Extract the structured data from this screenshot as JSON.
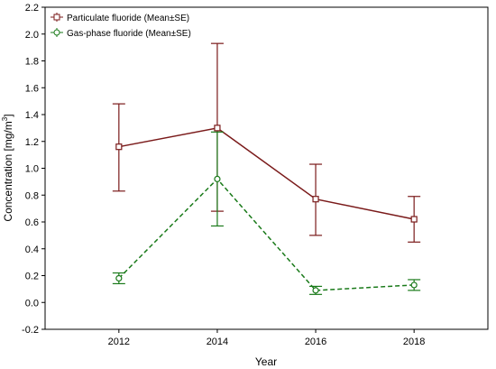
{
  "chart_data": {
    "type": "line",
    "xlabel": "Year",
    "ylabel": "Concentration [mg/m",
    "ylabel_superscript": "3",
    "ylabel_suffix": "]",
    "x": [
      2012,
      2014,
      2016,
      2018
    ],
    "x_ticks": [
      2012,
      2014,
      2016,
      2018
    ],
    "xlim": [
      2010.5,
      2019.5
    ],
    "ylim": [
      -0.2,
      2.2
    ],
    "y_ticks": [
      "-0.2",
      "0.0",
      "0.2",
      "0.4",
      "0.6",
      "0.8",
      "1.0",
      "1.2",
      "1.4",
      "1.6",
      "1.8",
      "2.0",
      "2.2"
    ],
    "legend_position": "top-left",
    "grid": false,
    "series": [
      {
        "name": "Particulate fluoride (Mean±SE)",
        "values": [
          1.16,
          1.3,
          0.77,
          0.62
        ],
        "err_low": [
          0.83,
          0.68,
          0.5,
          0.45
        ],
        "err_high": [
          1.48,
          1.93,
          1.03,
          0.79
        ],
        "color": "#7a1a1a",
        "line_style": "solid",
        "marker": "square"
      },
      {
        "name": "Gas-phase fluoride (Mean±SE)",
        "values": [
          0.18,
          0.92,
          0.09,
          0.13
        ],
        "err_low": [
          0.14,
          0.57,
          0.06,
          0.09
        ],
        "err_high": [
          0.22,
          1.27,
          0.12,
          0.17
        ],
        "color": "#1a7a1a",
        "line_style": "dashed",
        "marker": "circle"
      }
    ]
  }
}
